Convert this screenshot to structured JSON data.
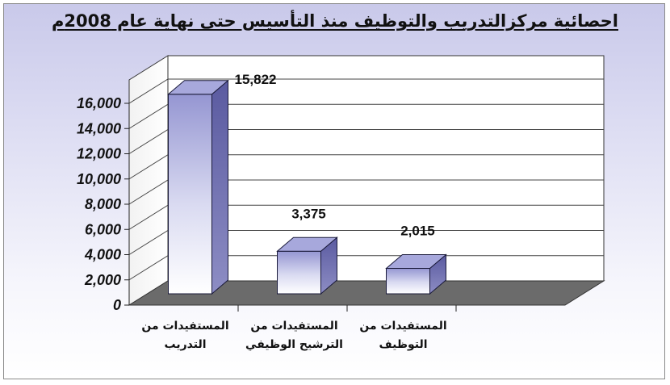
{
  "chart_data": {
    "type": "bar",
    "title": "احصائية مركزالتدريب والتوظيف منذ التأسيس حتى نهاية عام 2008م",
    "categories": [
      [
        "المستفيدات من",
        "التدريب"
      ],
      [
        "المستفيدات من",
        "الترشيح الوظيفي"
      ],
      [
        "المستفيدات من",
        "التوظيف"
      ]
    ],
    "values": [
      15822,
      3375,
      2015
    ],
    "data_labels": [
      "15,822",
      "3,375",
      "2,015"
    ],
    "ylim": [
      0,
      16000
    ],
    "yticks": [
      "0",
      "2,000",
      "4,000",
      "6,000",
      "8,000",
      "10,000",
      "12,000",
      "14,000",
      "16,000"
    ],
    "grid": true,
    "three_d": true,
    "colors": {
      "bar_top": "#9fa0d8",
      "bar_mid": "#ffffff",
      "bar_side": "#6a6aa8",
      "floor": "#6b6b6b",
      "wall": "#ffffff"
    }
  }
}
